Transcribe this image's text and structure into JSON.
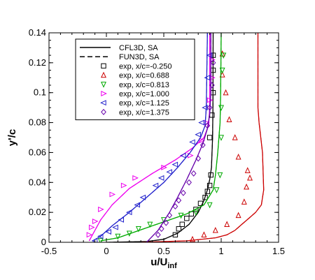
{
  "chart_data": {
    "type": "line",
    "title": "",
    "xlabel": "u/U",
    "xlabel_sub": "inf",
    "ylabel": "y'/c",
    "xlim": [
      -0.5,
      1.5
    ],
    "ylim": [
      0,
      0.14
    ],
    "x_ticks": [
      "-0.5",
      "0",
      "0.5",
      "1",
      "1.5"
    ],
    "y_ticks": [
      "0",
      "0.02",
      "0.04",
      "0.06",
      "0.08",
      "0.1",
      "0.12",
      "0.14"
    ],
    "grid": false,
    "legend_position": "top-left",
    "legend": [
      {
        "label": "CFL3D, SA",
        "kind": "line-solid"
      },
      {
        "label": "FUN3D, SA",
        "kind": "line-dashed"
      },
      {
        "label": "exp, x/c=-0.250",
        "kind": "marker",
        "marker": "square",
        "color": "#000000"
      },
      {
        "label": "exp, x/c=0.688",
        "kind": "marker",
        "marker": "triangle-up",
        "color": "#cc0000"
      },
      {
        "label": "exp, x/c=0.813",
        "kind": "marker",
        "marker": "triangle-down",
        "color": "#00aa00"
      },
      {
        "label": "exp, x/c=1.000",
        "kind": "marker",
        "marker": "triangle-right",
        "color": "#ee00ee"
      },
      {
        "label": "exp, x/c=1.125",
        "kind": "marker",
        "marker": "triangle-left",
        "color": "#2222cc"
      },
      {
        "label": "exp, x/c=1.375",
        "kind": "marker",
        "marker": "diamond",
        "color": "#6600aa"
      }
    ],
    "series": [
      {
        "station": "x/c=-0.250",
        "color": "#000000",
        "marker": "square",
        "cfd": [
          [
            0,
            0
          ],
          [
            0.35,
            0.0005
          ],
          [
            0.5,
            0.002
          ],
          [
            0.62,
            0.006
          ],
          [
            0.72,
            0.012
          ],
          [
            0.8,
            0.02
          ],
          [
            0.85,
            0.028
          ],
          [
            0.88,
            0.035
          ],
          [
            0.9,
            0.042
          ],
          [
            0.915,
            0.05
          ],
          [
            0.92,
            0.06
          ],
          [
            0.925,
            0.07
          ],
          [
            0.928,
            0.09
          ],
          [
            0.93,
            0.14
          ]
        ],
        "exp": [
          [
            0.6,
            0.005
          ],
          [
            0.63,
            0.009
          ],
          [
            0.66,
            0.012
          ],
          [
            0.7,
            0.016
          ],
          [
            0.74,
            0.019
          ],
          [
            0.78,
            0.022
          ],
          [
            0.82,
            0.026
          ],
          [
            0.86,
            0.03
          ],
          [
            0.88,
            0.034
          ],
          [
            0.9,
            0.038
          ],
          [
            0.91,
            0.045
          ],
          [
            0.9,
            0.07
          ],
          [
            0.92,
            0.085
          ],
          [
            0.93,
            0.1
          ],
          [
            0.93,
            0.115
          ],
          [
            0.93,
            0.125
          ]
        ]
      },
      {
        "station": "x/c=0.688",
        "color": "#cc0000",
        "marker": "triangle-up",
        "cfd": [
          [
            0.3,
            0
          ],
          [
            0.7,
            0.001
          ],
          [
            0.95,
            0.003
          ],
          [
            1.05,
            0.005
          ],
          [
            1.12,
            0.008
          ],
          [
            1.18,
            0.012
          ],
          [
            1.24,
            0.016
          ],
          [
            1.3,
            0.02
          ],
          [
            1.35,
            0.025
          ],
          [
            1.37,
            0.035
          ],
          [
            1.36,
            0.06
          ],
          [
            1.33,
            0.08
          ],
          [
            1.32,
            0.09
          ],
          [
            1.32,
            0.1
          ],
          [
            1.32,
            0.14
          ]
        ],
        "exp": [
          [
            0.75,
            0.002
          ],
          [
            0.85,
            0.005
          ],
          [
            0.95,
            0.008
          ],
          [
            1.05,
            0.012
          ],
          [
            1.15,
            0.018
          ],
          [
            1.2,
            0.027
          ],
          [
            1.22,
            0.037
          ],
          [
            1.25,
            0.043
          ],
          [
            1.23,
            0.048
          ],
          [
            1.15,
            0.057
          ],
          [
            1.12,
            0.07
          ],
          [
            1.07,
            0.082
          ],
          [
            1.04,
            0.1
          ],
          [
            1.01,
            0.112
          ],
          [
            1.01,
            0.126
          ]
        ]
      },
      {
        "station": "x/c=0.813",
        "color": "#00aa00",
        "marker": "triangle-down",
        "cfd": [
          [
            -0.05,
            0.001
          ],
          [
            0.1,
            0.003
          ],
          [
            0.25,
            0.007
          ],
          [
            0.4,
            0.011
          ],
          [
            0.55,
            0.015
          ],
          [
            0.7,
            0.019
          ],
          [
            0.85,
            0.025
          ],
          [
            0.93,
            0.035
          ],
          [
            0.95,
            0.045
          ],
          [
            0.97,
            0.06
          ],
          [
            0.99,
            0.08
          ],
          [
            0.995,
            0.1
          ],
          [
            1.0,
            0.14
          ]
        ],
        "exp": [
          [
            -0.05,
            0.001
          ],
          [
            0.1,
            0.004
          ],
          [
            0.2,
            0.006
          ],
          [
            0.28,
            0.009
          ],
          [
            0.38,
            0.012
          ],
          [
            0.5,
            0.015
          ],
          [
            0.65,
            0.018
          ],
          [
            0.78,
            0.02
          ],
          [
            0.9,
            0.025
          ],
          [
            0.96,
            0.035
          ],
          [
            0.99,
            0.045
          ],
          [
            1.0,
            0.07
          ],
          [
            1.0,
            0.09
          ],
          [
            1.01,
            0.115
          ],
          [
            1.02,
            0.125
          ]
        ]
      },
      {
        "station": "x/c=1.000",
        "color": "#ee00ee",
        "marker": "triangle-right",
        "cfd": [
          [
            -0.15,
            0.001
          ],
          [
            -0.1,
            0.008
          ],
          [
            -0.05,
            0.015
          ],
          [
            0.05,
            0.025
          ],
          [
            0.2,
            0.036
          ],
          [
            0.4,
            0.046
          ],
          [
            0.6,
            0.055
          ],
          [
            0.75,
            0.063
          ],
          [
            0.85,
            0.07
          ],
          [
            0.89,
            0.078
          ],
          [
            0.9,
            0.09
          ],
          [
            0.9,
            0.14
          ]
        ],
        "exp": [
          [
            -0.15,
            0.005
          ],
          [
            -0.13,
            0.01
          ],
          [
            -0.1,
            0.014
          ],
          [
            -0.05,
            0.022
          ],
          [
            0.05,
            0.032
          ],
          [
            0.15,
            0.038
          ],
          [
            0.25,
            0.043
          ],
          [
            0.5,
            0.05
          ],
          [
            0.73,
            0.058
          ],
          [
            0.83,
            0.068
          ],
          [
            0.87,
            0.08
          ],
          [
            0.9,
            0.095
          ],
          [
            0.92,
            0.11
          ],
          [
            0.92,
            0.122
          ]
        ]
      },
      {
        "station": "x/c=1.125",
        "color": "#2222cc",
        "marker": "triangle-left",
        "cfd": [
          [
            -0.12,
            0.001
          ],
          [
            -0.05,
            0.004
          ],
          [
            0.05,
            0.011
          ],
          [
            0.2,
            0.02
          ],
          [
            0.35,
            0.03
          ],
          [
            0.5,
            0.04
          ],
          [
            0.62,
            0.05
          ],
          [
            0.73,
            0.06
          ],
          [
            0.82,
            0.07
          ],
          [
            0.86,
            0.078
          ],
          [
            0.87,
            0.09
          ],
          [
            0.88,
            0.14
          ]
        ],
        "exp": [
          [
            -0.1,
            0.001
          ],
          [
            -0.05,
            0.004
          ],
          [
            0.02,
            0.007
          ],
          [
            0.08,
            0.01
          ],
          [
            0.13,
            0.015
          ],
          [
            0.2,
            0.02
          ],
          [
            0.27,
            0.025
          ],
          [
            0.32,
            0.03
          ],
          [
            0.43,
            0.038
          ],
          [
            0.48,
            0.043
          ],
          [
            0.55,
            0.047
          ],
          [
            0.6,
            0.052
          ],
          [
            0.67,
            0.058
          ],
          [
            0.75,
            0.067
          ],
          [
            0.8,
            0.072
          ],
          [
            0.83,
            0.08
          ],
          [
            0.86,
            0.09
          ],
          [
            0.88,
            0.11
          ],
          [
            0.9,
            0.125
          ]
        ]
      },
      {
        "station": "x/c=1.375",
        "color": "#6600aa",
        "marker": "diamond",
        "cfd": [
          [
            0.35,
            0
          ],
          [
            0.45,
            0.008
          ],
          [
            0.55,
            0.02
          ],
          [
            0.62,
            0.03
          ],
          [
            0.7,
            0.042
          ],
          [
            0.78,
            0.055
          ],
          [
            0.84,
            0.066
          ],
          [
            0.88,
            0.076
          ],
          [
            0.9,
            0.086
          ],
          [
            0.91,
            0.1
          ],
          [
            0.91,
            0.14
          ]
        ],
        "exp": [
          [
            0.45,
            0.005
          ],
          [
            0.48,
            0.009
          ],
          [
            0.52,
            0.013
          ],
          [
            0.55,
            0.018
          ],
          [
            0.6,
            0.024
          ],
          [
            0.63,
            0.028
          ],
          [
            0.67,
            0.033
          ],
          [
            0.72,
            0.04
          ],
          [
            0.76,
            0.046
          ],
          [
            0.8,
            0.056
          ],
          [
            0.84,
            0.065
          ],
          [
            0.88,
            0.078
          ],
          [
            0.9,
            0.09
          ],
          [
            0.92,
            0.105
          ],
          [
            0.93,
            0.12
          ]
        ]
      }
    ]
  }
}
